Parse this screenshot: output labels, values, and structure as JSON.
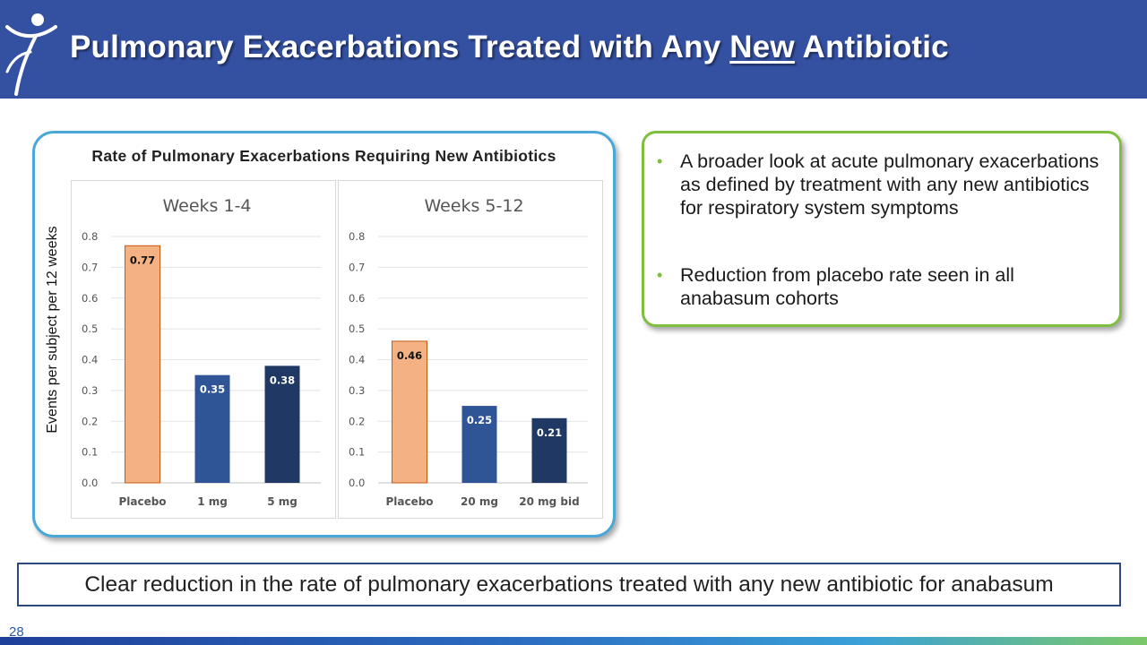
{
  "header": {
    "title_pre": "Pulmonary Exacerbations Treated with Any ",
    "title_underlined": "New",
    "title_post": " Antibiotic",
    "background": "#3450a1"
  },
  "chart_card": {
    "title": "Rate of Pulmonary Exacerbations Requiring New Antibiotics",
    "ylabel": "Events per subject per 12 weeks"
  },
  "chart_data": [
    {
      "type": "bar",
      "title": "Weeks 1-4",
      "categories": [
        "Placebo",
        "1 mg",
        "5 mg"
      ],
      "values": [
        0.77,
        0.35,
        0.38
      ],
      "labels": [
        "0.77",
        "0.35",
        "0.38"
      ],
      "colors": [
        "#f4b183",
        "#2f5597",
        "#203864"
      ],
      "label_colors": [
        "#111111",
        "#ffffff",
        "#ffffff"
      ],
      "ylim": [
        0,
        0.8
      ],
      "yticks": [
        "0.0",
        "0.1",
        "0.2",
        "0.3",
        "0.4",
        "0.5",
        "0.6",
        "0.7",
        "0.8"
      ],
      "grid": true
    },
    {
      "type": "bar",
      "title": "Weeks 5-12",
      "categories": [
        "Placebo",
        "20 mg",
        "20 mg bid"
      ],
      "values": [
        0.46,
        0.25,
        0.21
      ],
      "labels": [
        "0.46",
        "0.25",
        "0.21"
      ],
      "colors": [
        "#f4b183",
        "#2f5597",
        "#203864"
      ],
      "label_colors": [
        "#111111",
        "#ffffff",
        "#ffffff"
      ],
      "ylim": [
        0,
        0.8
      ],
      "yticks": [
        "0.0",
        "0.1",
        "0.2",
        "0.3",
        "0.4",
        "0.5",
        "0.6",
        "0.7",
        "0.8"
      ],
      "grid": true
    }
  ],
  "bullets": [
    "A broader look at acute pulmonary exacerbations as defined by treatment with any new antibiotics for respiratory system symptoms",
    "Reduction from placebo rate seen in all anabasum cohorts"
  ],
  "conclusion": "Clear reduction in the rate of pulmonary exacerbations treated with any new antibiotic for anabasum",
  "footer": {
    "page_number": "28"
  }
}
